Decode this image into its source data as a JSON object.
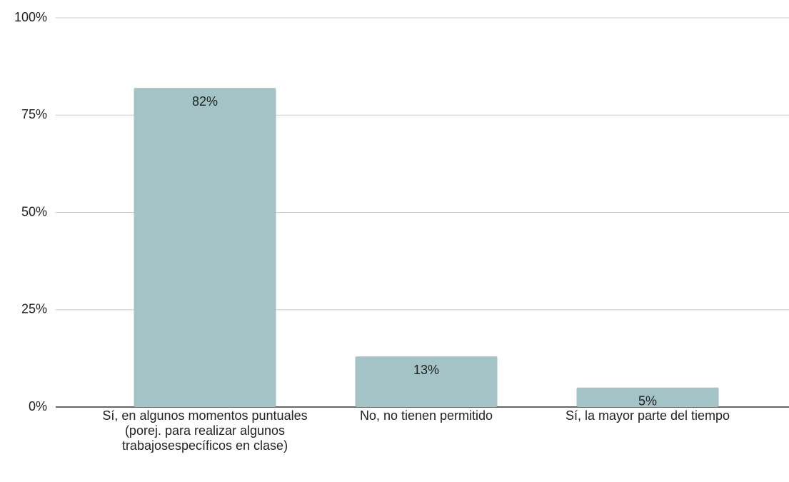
{
  "chart_data": {
    "type": "bar",
    "categories": [
      "Sí, en algunos momentos puntuales (porej. para realizar algunos trabajosespecíficos en clase)",
      "No, no tienen permitido",
      "Sí, la mayor parte del tiempo"
    ],
    "values": [
      82,
      13,
      5
    ],
    "value_labels": [
      "82%",
      "13%",
      "5%"
    ],
    "color": "#a3c3c7",
    "ylim": [
      0,
      100
    ],
    "yticks": [
      {
        "value": 0,
        "label": "0%"
      },
      {
        "value": 25,
        "label": "25%"
      },
      {
        "value": 50,
        "label": "50%"
      },
      {
        "value": 75,
        "label": "75%"
      },
      {
        "value": 100,
        "label": "100%"
      }
    ],
    "grid": true
  }
}
